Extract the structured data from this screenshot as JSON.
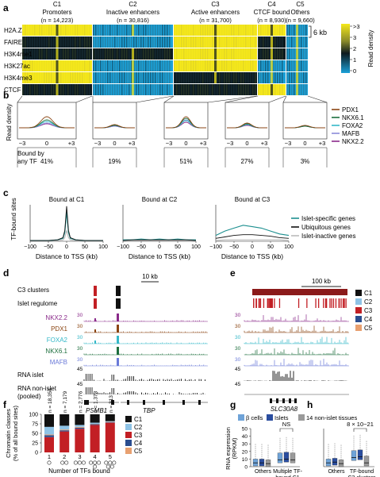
{
  "panels": {
    "a": "a",
    "b": "b",
    "c": "c",
    "d": "d",
    "e": "e",
    "f": "f",
    "g": "g",
    "h": "h"
  },
  "colors": {
    "yellow": "#f5e81a",
    "blue": "#1aa0d8",
    "dark": "#0d1a1f",
    "olive": "#4a4a2a",
    "red": "#c21f24",
    "darkred": "#8b1a1a",
    "teal": "#1c8f8f",
    "gray": "#9a9a9a",
    "lightblue": "#8fc3e6",
    "navy": "#2a4d8f"
  },
  "a": {
    "clusters": [
      {
        "label": "C1",
        "line1": "Promoters",
        "count": "(n = 14,223)"
      },
      {
        "label": "C2",
        "line1": "Inactive enhancers",
        "count": "(n = 30,816)"
      },
      {
        "label": "C3",
        "line1": "Active enhancers",
        "count": "(n = 31,700)"
      },
      {
        "label": "C4",
        "line1": "CTCF bound",
        "count": "(n = 8,930)"
      },
      {
        "label": "C5",
        "line1": "Others",
        "count": "(n = 9,660)"
      }
    ],
    "rows": [
      "H2A.Z",
      "FAIRE",
      "H3K4me1",
      "H3K27ac",
      "H3K4me3",
      "CTCF"
    ],
    "scale_bar": "6 kb",
    "legend_ticks": [
      ">3",
      "3",
      "2",
      "1",
      "0"
    ],
    "legend_label": "Read density"
  },
  "b": {
    "ylabel": "Read density",
    "ticks": [
      "−3",
      "0",
      "+3"
    ],
    "bound_label": "Bound by any TF",
    "percents": [
      "41%",
      "19%",
      "51%",
      "27%",
      "3%"
    ],
    "legend": [
      {
        "name": "PDX1",
        "color": "#8b4513"
      },
      {
        "name": "NKX6.1",
        "color": "#1c6e3d"
      },
      {
        "name": "FOXA2",
        "color": "#35b8c8"
      },
      {
        "name": "MAFB",
        "color": "#8a8ad8"
      },
      {
        "name": "NKX2.2",
        "color": "#8a2a8a"
      }
    ]
  },
  "c": {
    "ylabel": "TF-bound sites",
    "xlabel": "Distance to TSS (kb)",
    "titles": [
      "Bound at C1",
      "Bound at C2",
      "Bound at C3"
    ],
    "xticks": [
      "−100",
      "−50",
      "0",
      "50",
      "100"
    ],
    "legend": [
      {
        "name": "Islet-specific genes",
        "color": "#1c8f8f"
      },
      {
        "name": "Ubiquitous genes",
        "color": "#111111"
      },
      {
        "name": "Islet-inactive genes",
        "color": "#bbbbbb"
      }
    ]
  },
  "d": {
    "scale": "10 kb",
    "track_labels": [
      "C3 clusters",
      "Islet regulome",
      "NKX2.2",
      "PDX1",
      "FOXA2",
      "NKX6.1",
      "MAFB",
      "RNA islet",
      "RNA non-islet",
      "(pooled)"
    ],
    "track_nums": [
      "30",
      "30",
      "30",
      "30",
      "30",
      "45",
      "45"
    ],
    "genes": [
      "PSMB1",
      "TBP"
    ]
  },
  "e": {
    "scale": "100 kb",
    "track_nums": [
      "30",
      "30",
      "30",
      "30",
      "30",
      "45",
      "45"
    ],
    "gene": "SLC30A8",
    "legend": [
      {
        "name": "C1",
        "color": "#111111"
      },
      {
        "name": "C2",
        "color": "#8fc3e6"
      },
      {
        "name": "C3",
        "color": "#c21f24"
      },
      {
        "name": "C4",
        "color": "#2a4d8f"
      },
      {
        "name": "C5",
        "color": "#e8a070"
      }
    ]
  },
  "f": {
    "ylabel1": "Chromatin classes",
    "ylabel2": "(% of all bound sites)",
    "xlabel": "Number of TFs bound",
    "yticks": [
      "0",
      "25",
      "50",
      "75",
      "100"
    ],
    "n_labels": [
      "n = 18,356",
      "n = 7,179",
      "n = 2,776",
      "n = 1,373",
      "n = 313"
    ],
    "categories": [
      "1",
      "2",
      "3",
      "4",
      "5"
    ],
    "legend": [
      {
        "name": "C1",
        "color": "#111111"
      },
      {
        "name": "C2",
        "color": "#8fc3e6"
      },
      {
        "name": "C3",
        "color": "#c21f24"
      },
      {
        "name": "C4",
        "color": "#2a4d8f"
      },
      {
        "name": "C5",
        "color": "#e8a070"
      }
    ]
  },
  "gh": {
    "legend": [
      {
        "name": "β cells",
        "color": "#6fa3d8"
      },
      {
        "name": "Islets",
        "color": "#2a4d9f"
      },
      {
        "name": "14 non-islet tissues",
        "color": "#9a9a9a"
      }
    ],
    "ylabel1": "RNA expression",
    "ylabel2": "(RPKM)",
    "yticks": [
      "0",
      "10",
      "20",
      "30",
      "40",
      "50"
    ],
    "g_groups": [
      "Others",
      "Multiple TF-",
      "bound C1"
    ],
    "g_sig": "NS",
    "h_groups": [
      "Others",
      "TF-bound",
      "C3 clusters"
    ],
    "h_sig": "8 × 10−21"
  },
  "chart_data": [
    {
      "type": "line",
      "title": "Bound at C1",
      "xlabel": "Distance to TSS (kb)",
      "ylabel": "TF-bound sites",
      "x": [
        -100,
        -75,
        -50,
        -25,
        -10,
        -5,
        0,
        5,
        10,
        25,
        50,
        75,
        100
      ],
      "series": [
        {
          "name": "Islet-specific genes",
          "values": [
            1,
            1,
            1,
            2,
            4,
            12,
            40,
            12,
            4,
            2,
            1,
            1,
            1
          ]
        },
        {
          "name": "Ubiquitous genes",
          "values": [
            1,
            1,
            1,
            2,
            5,
            15,
            48,
            15,
            5,
            2,
            1,
            1,
            1
          ]
        },
        {
          "name": "Islet-inactive genes",
          "values": [
            1,
            1,
            1,
            1,
            2,
            5,
            15,
            5,
            2,
            1,
            1,
            1,
            1
          ]
        }
      ]
    },
    {
      "type": "line",
      "title": "Bound at C2",
      "xlabel": "Distance to TSS (kb)",
      "x": [
        -100,
        -75,
        -50,
        -25,
        0,
        25,
        50,
        75,
        100
      ],
      "series": [
        {
          "name": "Islet-specific genes",
          "values": [
            2,
            2,
            3,
            2,
            3,
            2,
            3,
            2,
            2
          ]
        },
        {
          "name": "Ubiquitous genes",
          "values": [
            1,
            2,
            2,
            2,
            2,
            2,
            2,
            2,
            1
          ]
        },
        {
          "name": "Islet-inactive genes",
          "values": [
            1,
            1,
            1,
            1,
            1,
            1,
            1,
            1,
            1
          ]
        }
      ]
    },
    {
      "type": "line",
      "title": "Bound at C3",
      "xlabel": "Distance to TSS (kb)",
      "x": [
        -100,
        -75,
        -50,
        -25,
        0,
        25,
        50,
        75,
        100
      ],
      "series": [
        {
          "name": "Islet-specific genes",
          "values": [
            8,
            14,
            18,
            22,
            20,
            18,
            14,
            10,
            8
          ]
        },
        {
          "name": "Ubiquitous genes",
          "values": [
            4,
            6,
            8,
            9,
            9,
            8,
            7,
            5,
            4
          ]
        },
        {
          "name": "Islet-inactive genes",
          "values": [
            1,
            2,
            2,
            2,
            2,
            2,
            2,
            2,
            1
          ]
        }
      ]
    },
    {
      "type": "bar",
      "title": "",
      "xlabel": "Number of TFs bound",
      "ylabel": "Chromatin classes (% of all bound sites)",
      "categories": [
        "1",
        "2",
        "3",
        "4",
        "5"
      ],
      "ylim": [
        0,
        100
      ],
      "series": [
        {
          "name": "C1",
          "values": [
            33,
            30,
            28,
            22,
            18
          ]
        },
        {
          "name": "C2",
          "values": [
            20,
            10,
            5,
            3,
            2
          ]
        },
        {
          "name": "C3",
          "values": [
            40,
            55,
            62,
            72,
            78
          ]
        },
        {
          "name": "C4",
          "values": [
            5,
            3,
            3,
            2,
            1
          ]
        },
        {
          "name": "C5",
          "values": [
            2,
            2,
            2,
            1,
            1
          ]
        }
      ]
    },
    {
      "type": "bar",
      "xlabel": "",
      "ylabel": "RNA expression (RPKM)",
      "ylim": [
        0,
        50
      ],
      "categories": [
        "Others",
        "Multiple TF-bound C1"
      ],
      "series": [
        {
          "name": "β cells",
          "values": [
            5,
            9
          ]
        },
        {
          "name": "Islets",
          "values": [
            5,
            10
          ]
        },
        {
          "name": "14 non-islet tissues",
          "values": [
            4,
            9
          ]
        }
      ]
    },
    {
      "type": "bar",
      "ylim": [
        0,
        50
      ],
      "categories": [
        "Others",
        "TF-bound C3 clusters"
      ],
      "series": [
        {
          "name": "β cells",
          "values": [
            5,
            12
          ]
        },
        {
          "name": "Islets",
          "values": [
            6,
            13
          ]
        },
        {
          "name": "14 non-islet tissues",
          "values": [
            4,
            5
          ]
        }
      ]
    }
  ]
}
